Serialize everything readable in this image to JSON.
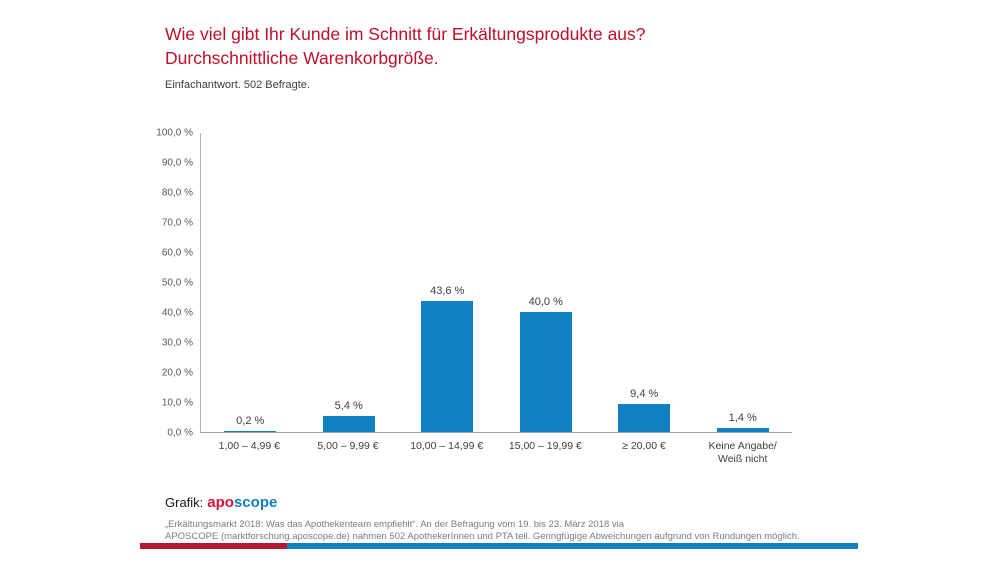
{
  "header": {
    "title_line1": "Wie viel gibt Ihr Kunde im Schnitt für Erkältungsprodukte aus?",
    "title_line2": "Durchschnittliche Warenkorbgröße.",
    "subtitle": "Einfachantwort. 502 Befragte."
  },
  "chart_data": {
    "type": "bar",
    "title": "Wie viel gibt Ihr Kunde im Schnitt für Erkältungsprodukte aus? Durchschnittliche Warenkorbgröße.",
    "categories": [
      "1,00 – 4,99 €",
      "5,00 – 9,99 €",
      "10,00 – 14,99 €",
      "15,00 – 19,99 €",
      "≥ 20,00 €",
      "Keine Angabe/\nWeiß nicht"
    ],
    "values": [
      0.2,
      5.4,
      43.6,
      40.0,
      9.4,
      1.4
    ],
    "value_labels": [
      "0,2 %",
      "5,4 %",
      "43,6 %",
      "40,0 %",
      "9,4 %",
      "1,4 %"
    ],
    "y_ticks": [
      "100,0 %",
      "90,0 %",
      "80,0 %",
      "70,0 %",
      "60,0 %",
      "50,0 %",
      "40,0 %",
      "30,0 %",
      "20,0 %",
      "10,0 %",
      "0,0 %"
    ],
    "xlabel": "",
    "ylabel": "",
    "ylim": [
      0,
      100
    ],
    "grid": false,
    "legend": false,
    "bar_color": "#1180c2"
  },
  "footer": {
    "grafik_label": "Grafik:",
    "brand_apo": "apo",
    "brand_scope": "scope",
    "footnote_line1": "„Erkältungsmarkt 2018: Was das Apothekenteam empfiehlt“. An der Befragung vom 19. bis 23. März 2018 via",
    "footnote_line2": "APOSCOPE (marktforschung.aposcope.de) nahmen 502 ApothekerInnen und PTA teil. Geringfügige Abweichungen aufgrund von Rundungen möglich."
  },
  "colors": {
    "title_red": "#c00f2d",
    "bar_blue": "#1180c2",
    "brand_red": "#d4133c",
    "brand_blue": "#1180c2",
    "stripe_red": "#b01c2e",
    "stripe_blue": "#1180c2"
  }
}
